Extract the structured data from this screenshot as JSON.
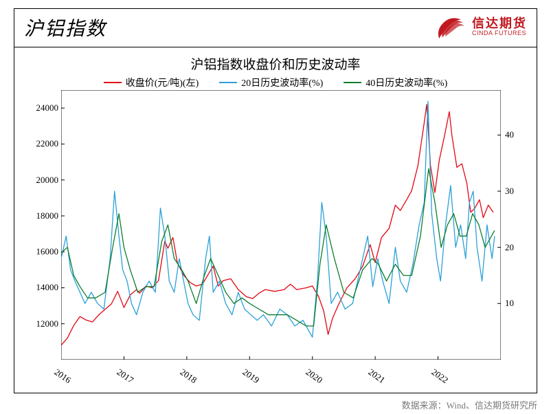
{
  "page_title": "沪铝指数",
  "brand": {
    "cn": "信达期货",
    "en": "CINDA FUTURES",
    "color": "#c11920"
  },
  "chart": {
    "type": "line",
    "title": "沪铝指数收盘价和历史波动率",
    "title_fontsize": 19,
    "label_fontsize": 13,
    "background_color": "#ffffff",
    "frame_color": "#000000",
    "tick_len": 5,
    "legend": {
      "items": [
        {
          "label": "收盘价(元/吨)(左)",
          "color": "#e30613"
        },
        {
          "label": "20日历史波动率(%)",
          "color": "#2aa0d8"
        },
        {
          "label": "40日历史波动率(%)",
          "color": "#0a7d2c"
        }
      ]
    },
    "x_axis": {
      "min": 2016.0,
      "max": 2023.0,
      "ticks": [
        2016,
        2017,
        2018,
        2019,
        2020,
        2021,
        2022
      ],
      "tick_rotation": 35
    },
    "y_left": {
      "min": 10000,
      "max": 25000,
      "ticks": [
        12000,
        14000,
        16000,
        18000,
        20000,
        22000,
        24000
      ]
    },
    "y_right": {
      "min": 0,
      "max": 48,
      "ticks": [
        10,
        20,
        30,
        40
      ]
    },
    "line_width": 1.3,
    "series": [
      {
        "name": "close",
        "color": "#e30613",
        "axis": "left",
        "points": [
          [
            2016.0,
            10800
          ],
          [
            2016.1,
            11200
          ],
          [
            2016.2,
            11900
          ],
          [
            2016.3,
            12400
          ],
          [
            2016.4,
            12200
          ],
          [
            2016.5,
            12100
          ],
          [
            2016.6,
            12500
          ],
          [
            2016.7,
            12800
          ],
          [
            2016.8,
            13100
          ],
          [
            2016.9,
            13800
          ],
          [
            2017.0,
            12900
          ],
          [
            2017.1,
            13600
          ],
          [
            2017.2,
            13900
          ],
          [
            2017.25,
            13700
          ],
          [
            2017.35,
            14100
          ],
          [
            2017.45,
            14000
          ],
          [
            2017.55,
            14400
          ],
          [
            2017.65,
            16600
          ],
          [
            2017.7,
            16200
          ],
          [
            2017.78,
            16800
          ],
          [
            2017.85,
            15400
          ],
          [
            2017.95,
            14700
          ],
          [
            2018.05,
            14300
          ],
          [
            2018.15,
            14100
          ],
          [
            2018.25,
            14200
          ],
          [
            2018.35,
            14800
          ],
          [
            2018.42,
            15200
          ],
          [
            2018.5,
            14100
          ],
          [
            2018.58,
            14400
          ],
          [
            2018.7,
            14500
          ],
          [
            2018.82,
            13900
          ],
          [
            2018.95,
            13500
          ],
          [
            2019.05,
            13400
          ],
          [
            2019.15,
            13700
          ],
          [
            2019.25,
            13900
          ],
          [
            2019.4,
            13800
          ],
          [
            2019.55,
            13900
          ],
          [
            2019.65,
            14200
          ],
          [
            2019.75,
            13900
          ],
          [
            2019.9,
            14000
          ],
          [
            2020.0,
            14100
          ],
          [
            2020.1,
            13500
          ],
          [
            2020.18,
            12700
          ],
          [
            2020.25,
            11400
          ],
          [
            2020.32,
            12300
          ],
          [
            2020.42,
            13100
          ],
          [
            2020.55,
            14000
          ],
          [
            2020.68,
            14500
          ],
          [
            2020.8,
            15200
          ],
          [
            2020.92,
            16400
          ],
          [
            2021.0,
            15400
          ],
          [
            2021.1,
            16800
          ],
          [
            2021.22,
            17300
          ],
          [
            2021.32,
            18600
          ],
          [
            2021.4,
            18300
          ],
          [
            2021.5,
            18900
          ],
          [
            2021.58,
            19400
          ],
          [
            2021.68,
            20800
          ],
          [
            2021.78,
            23200
          ],
          [
            2021.82,
            24200
          ],
          [
            2021.88,
            20800
          ],
          [
            2021.95,
            19300
          ],
          [
            2022.02,
            21100
          ],
          [
            2022.1,
            22400
          ],
          [
            2022.18,
            23800
          ],
          [
            2022.22,
            22500
          ],
          [
            2022.3,
            20700
          ],
          [
            2022.38,
            20900
          ],
          [
            2022.46,
            19800
          ],
          [
            2022.52,
            18200
          ],
          [
            2022.58,
            18400
          ],
          [
            2022.66,
            18900
          ],
          [
            2022.72,
            17900
          ],
          [
            2022.8,
            18600
          ],
          [
            2022.88,
            18200
          ]
        ]
      },
      {
        "name": "vol20",
        "color": "#2aa0d8",
        "axis": "right",
        "points": [
          [
            2016.0,
            18
          ],
          [
            2016.08,
            22
          ],
          [
            2016.15,
            16
          ],
          [
            2016.22,
            14
          ],
          [
            2016.3,
            12
          ],
          [
            2016.38,
            10
          ],
          [
            2016.48,
            12
          ],
          [
            2016.58,
            10
          ],
          [
            2016.68,
            9
          ],
          [
            2016.78,
            18
          ],
          [
            2016.85,
            30
          ],
          [
            2016.92,
            22
          ],
          [
            2016.98,
            16
          ],
          [
            2017.05,
            14
          ],
          [
            2017.12,
            10
          ],
          [
            2017.2,
            8
          ],
          [
            2017.3,
            12
          ],
          [
            2017.4,
            14
          ],
          [
            2017.5,
            12
          ],
          [
            2017.58,
            27
          ],
          [
            2017.65,
            22
          ],
          [
            2017.72,
            14
          ],
          [
            2017.8,
            12
          ],
          [
            2017.88,
            18
          ],
          [
            2017.95,
            14
          ],
          [
            2018.02,
            10
          ],
          [
            2018.1,
            8
          ],
          [
            2018.2,
            7
          ],
          [
            2018.3,
            18
          ],
          [
            2018.36,
            22
          ],
          [
            2018.42,
            12
          ],
          [
            2018.52,
            14
          ],
          [
            2018.62,
            10
          ],
          [
            2018.72,
            8
          ],
          [
            2018.82,
            12
          ],
          [
            2018.92,
            9
          ],
          [
            2019.02,
            8
          ],
          [
            2019.12,
            7
          ],
          [
            2019.22,
            8
          ],
          [
            2019.35,
            6
          ],
          [
            2019.48,
            9
          ],
          [
            2019.6,
            8
          ],
          [
            2019.72,
            6
          ],
          [
            2019.85,
            7
          ],
          [
            2019.95,
            5
          ],
          [
            2020.0,
            4
          ],
          [
            2020.08,
            14
          ],
          [
            2020.15,
            28
          ],
          [
            2020.22,
            22
          ],
          [
            2020.3,
            10
          ],
          [
            2020.4,
            12
          ],
          [
            2020.52,
            9
          ],
          [
            2020.64,
            10
          ],
          [
            2020.76,
            16
          ],
          [
            2020.88,
            22
          ],
          [
            2020.96,
            13
          ],
          [
            2021.04,
            18
          ],
          [
            2021.12,
            14
          ],
          [
            2021.22,
            10
          ],
          [
            2021.32,
            20
          ],
          [
            2021.4,
            14
          ],
          [
            2021.5,
            12
          ],
          [
            2021.6,
            17
          ],
          [
            2021.7,
            24
          ],
          [
            2021.78,
            28
          ],
          [
            2021.84,
            46
          ],
          [
            2021.9,
            26
          ],
          [
            2021.98,
            18
          ],
          [
            2022.04,
            14
          ],
          [
            2022.12,
            24
          ],
          [
            2022.2,
            31
          ],
          [
            2022.28,
            20
          ],
          [
            2022.36,
            24
          ],
          [
            2022.44,
            18
          ],
          [
            2022.5,
            28
          ],
          [
            2022.56,
            30
          ],
          [
            2022.62,
            20
          ],
          [
            2022.7,
            14
          ],
          [
            2022.78,
            24
          ],
          [
            2022.86,
            18
          ],
          [
            2022.9,
            22
          ]
        ]
      },
      {
        "name": "vol40",
        "color": "#0a7d2c",
        "axis": "right",
        "points": [
          [
            2016.0,
            19
          ],
          [
            2016.1,
            20
          ],
          [
            2016.2,
            15
          ],
          [
            2016.3,
            13
          ],
          [
            2016.42,
            11
          ],
          [
            2016.55,
            11
          ],
          [
            2016.7,
            12
          ],
          [
            2016.82,
            20
          ],
          [
            2016.92,
            26
          ],
          [
            2017.0,
            20
          ],
          [
            2017.1,
            16
          ],
          [
            2017.22,
            12
          ],
          [
            2017.35,
            13
          ],
          [
            2017.48,
            13
          ],
          [
            2017.6,
            21
          ],
          [
            2017.7,
            24
          ],
          [
            2017.8,
            18
          ],
          [
            2017.92,
            16
          ],
          [
            2018.02,
            14
          ],
          [
            2018.15,
            10
          ],
          [
            2018.28,
            15
          ],
          [
            2018.38,
            18
          ],
          [
            2018.5,
            15
          ],
          [
            2018.62,
            12
          ],
          [
            2018.75,
            10
          ],
          [
            2018.88,
            11
          ],
          [
            2019.0,
            10
          ],
          [
            2019.15,
            9
          ],
          [
            2019.3,
            8
          ],
          [
            2019.45,
            8
          ],
          [
            2019.6,
            8
          ],
          [
            2019.75,
            7
          ],
          [
            2019.9,
            6
          ],
          [
            2020.02,
            6
          ],
          [
            2020.12,
            17
          ],
          [
            2020.22,
            24
          ],
          [
            2020.35,
            18
          ],
          [
            2020.5,
            12
          ],
          [
            2020.65,
            11
          ],
          [
            2020.8,
            16
          ],
          [
            2020.95,
            18
          ],
          [
            2021.05,
            17
          ],
          [
            2021.18,
            14
          ],
          [
            2021.32,
            17
          ],
          [
            2021.45,
            15
          ],
          [
            2021.58,
            15
          ],
          [
            2021.72,
            22
          ],
          [
            2021.85,
            34
          ],
          [
            2021.95,
            28
          ],
          [
            2022.05,
            20
          ],
          [
            2022.15,
            24
          ],
          [
            2022.25,
            26
          ],
          [
            2022.35,
            22
          ],
          [
            2022.45,
            22
          ],
          [
            2022.55,
            26
          ],
          [
            2022.65,
            24
          ],
          [
            2022.75,
            20
          ],
          [
            2022.85,
            22
          ],
          [
            2022.9,
            23
          ]
        ]
      }
    ]
  },
  "source": "数据来源：Wind、信达期货研究所"
}
